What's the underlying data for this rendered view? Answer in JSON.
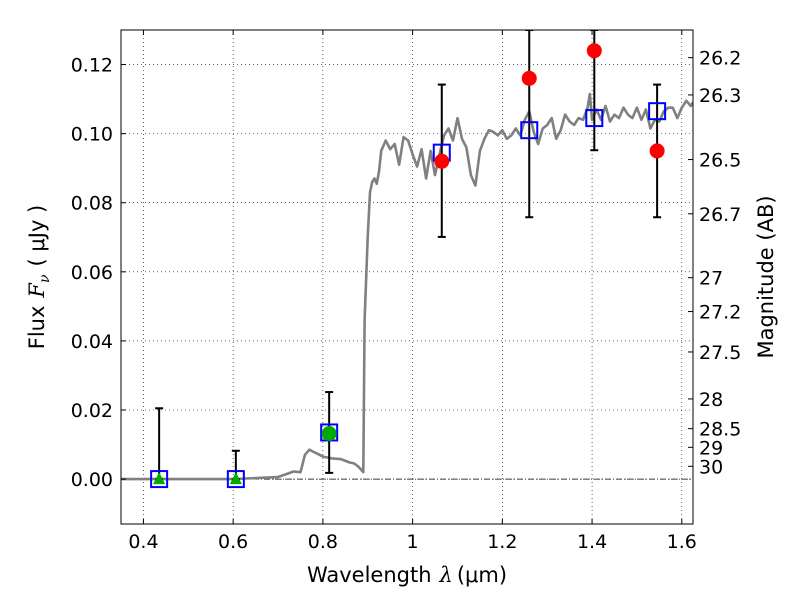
{
  "chart_data": {
    "type": "scatter",
    "xlabel": "Wavelength",
    "xlabel_symbol": "λ",
    "xlabel_unit": "(μm)",
    "ylabel": "Flux",
    "ylabel_symbol": "F",
    "ylabel_subscript": "ν",
    "ylabel_unit": "( μJy )",
    "y2label": "Magnitude (AB)",
    "xlim": [
      0.35,
      1.625
    ],
    "ylim": [
      -0.013,
      0.13
    ],
    "grid": true,
    "grid_style": "dotted",
    "x_ticks": [
      0.4,
      0.6,
      0.8,
      1.0,
      1.2,
      1.4,
      1.6
    ],
    "x_tick_labels": [
      "0.4",
      "0.6",
      "0.8",
      "1",
      "1.2",
      "1.4",
      "1.6"
    ],
    "y_ticks": [
      0.0,
      0.02,
      0.04,
      0.06,
      0.08,
      0.1,
      0.12
    ],
    "y_tick_labels": [
      "0.00",
      "0.02",
      "0.04",
      "0.06",
      "0.08",
      "0.10",
      "0.12"
    ],
    "magnitude_ticks": [
      {
        "label": "26.2",
        "flux": 0.122
      },
      {
        "label": "26.3",
        "flux": 0.1112
      },
      {
        "label": "26.5",
        "flux": 0.0925
      },
      {
        "label": "26.7",
        "flux": 0.0768
      },
      {
        "label": "27",
        "flux": 0.0583
      },
      {
        "label": "27.2",
        "flux": 0.0485
      },
      {
        "label": "27.5",
        "flux": 0.0368
      },
      {
        "label": "28",
        "flux": 0.0232
      },
      {
        "label": "28.5",
        "flux": 0.0146
      },
      {
        "label": "29",
        "flux": 0.0092
      },
      {
        "label": "30",
        "flux": 0.0037
      }
    ],
    "zero_line": {
      "y": 0.0,
      "style": "dash-dot"
    },
    "series": [
      {
        "marker": "line",
        "color": "#808080",
        "points": [
          [
            0.35,
            0.0
          ],
          [
            0.5,
            0.0
          ],
          [
            0.6,
            0.0
          ],
          [
            0.65,
            0.0003
          ],
          [
            0.7,
            0.0006
          ],
          [
            0.72,
            0.0015
          ],
          [
            0.735,
            0.0022
          ],
          [
            0.75,
            0.002
          ],
          [
            0.76,
            0.007
          ],
          [
            0.77,
            0.0085
          ],
          [
            0.78,
            0.0078
          ],
          [
            0.79,
            0.0072
          ],
          [
            0.8,
            0.0065
          ],
          [
            0.82,
            0.006
          ],
          [
            0.84,
            0.0058
          ],
          [
            0.86,
            0.0048
          ],
          [
            0.87,
            0.0045
          ],
          [
            0.88,
            0.0035
          ],
          [
            0.89,
            0.002
          ],
          [
            0.893,
            0.046
          ],
          [
            0.9,
            0.07
          ],
          [
            0.905,
            0.083
          ],
          [
            0.91,
            0.086
          ],
          [
            0.915,
            0.087
          ],
          [
            0.92,
            0.0855
          ],
          [
            0.925,
            0.089
          ],
          [
            0.93,
            0.095
          ],
          [
            0.94,
            0.098
          ],
          [
            0.95,
            0.0955
          ],
          [
            0.96,
            0.097
          ],
          [
            0.97,
            0.091
          ],
          [
            0.98,
            0.099
          ],
          [
            0.99,
            0.098
          ],
          [
            1.0,
            0.094
          ],
          [
            1.01,
            0.0905
          ],
          [
            1.02,
            0.0955
          ],
          [
            1.03,
            0.087
          ],
          [
            1.04,
            0.095
          ],
          [
            1.05,
            0.088
          ],
          [
            1.06,
            0.094
          ],
          [
            1.07,
            0.0995
          ],
          [
            1.08,
            0.1015
          ],
          [
            1.09,
            0.098
          ],
          [
            1.1,
            0.1045
          ],
          [
            1.11,
            0.0985
          ],
          [
            1.12,
            0.096
          ],
          [
            1.13,
            0.088
          ],
          [
            1.14,
            0.085
          ],
          [
            1.15,
            0.095
          ],
          [
            1.16,
            0.0985
          ],
          [
            1.17,
            0.101
          ],
          [
            1.18,
            0.1005
          ],
          [
            1.19,
            0.0995
          ],
          [
            1.2,
            0.101
          ],
          [
            1.21,
            0.0985
          ],
          [
            1.22,
            0.0995
          ],
          [
            1.23,
            0.1015
          ],
          [
            1.24,
            0.0995
          ],
          [
            1.25,
            0.104
          ],
          [
            1.26,
            0.1065
          ],
          [
            1.27,
            0.1005
          ],
          [
            1.28,
            0.097
          ],
          [
            1.29,
            0.1015
          ],
          [
            1.3,
            0.1025
          ],
          [
            1.31,
            0.1045
          ],
          [
            1.32,
            0.0985
          ],
          [
            1.33,
            0.101
          ],
          [
            1.34,
            0.1055
          ],
          [
            1.35,
            0.1035
          ],
          [
            1.36,
            0.1025
          ],
          [
            1.37,
            0.1045
          ],
          [
            1.38,
            0.104
          ],
          [
            1.39,
            0.1075
          ],
          [
            1.395,
            0.1115
          ],
          [
            1.4,
            0.104
          ],
          [
            1.41,
            0.107
          ],
          [
            1.42,
            0.104
          ],
          [
            1.43,
            0.108
          ],
          [
            1.44,
            0.1035
          ],
          [
            1.45,
            0.1055
          ],
          [
            1.46,
            0.1045
          ],
          [
            1.47,
            0.1075
          ],
          [
            1.48,
            0.1055
          ],
          [
            1.49,
            0.1045
          ],
          [
            1.5,
            0.1075
          ],
          [
            1.51,
            0.104
          ],
          [
            1.52,
            0.107
          ],
          [
            1.53,
            0.1015
          ],
          [
            1.54,
            0.104
          ],
          [
            1.55,
            0.1035
          ],
          [
            1.56,
            0.1065
          ],
          [
            1.57,
            0.1075
          ],
          [
            1.58,
            0.1075
          ],
          [
            1.59,
            0.1045
          ],
          [
            1.6,
            0.1075
          ],
          [
            1.61,
            0.1095
          ],
          [
            1.62,
            0.108
          ],
          [
            1.625,
            0.109
          ]
        ]
      },
      {
        "marker": "errorbar",
        "color": "#000000",
        "points": [
          {
            "x": 0.435,
            "low": 0.0,
            "high": 0.0205
          },
          {
            "x": 0.606,
            "low": 0.0,
            "high": 0.0082
          },
          {
            "x": 0.814,
            "low": 0.0018,
            "high": 0.0252
          },
          {
            "x": 1.065,
            "low": 0.0701,
            "high": 0.1142
          },
          {
            "x": 1.26,
            "low": 0.0758,
            "high": 0.13
          },
          {
            "x": 1.405,
            "low": 0.0952,
            "high": 0.13
          },
          {
            "x": 1.545,
            "low": 0.0758,
            "high": 0.1142
          }
        ]
      },
      {
        "marker": "square",
        "color": "#0000ff",
        "points": [
          {
            "x": 0.435,
            "y": 0.0
          },
          {
            "x": 0.606,
            "y": 0.0
          },
          {
            "x": 0.814,
            "y": 0.0135
          },
          {
            "x": 1.065,
            "y": 0.0945
          },
          {
            "x": 1.26,
            "y": 0.101
          },
          {
            "x": 1.405,
            "y": 0.1045
          },
          {
            "x": 1.545,
            "y": 0.1065
          }
        ]
      },
      {
        "marker": "triangle",
        "color": "#00aa00",
        "points": [
          {
            "x": 0.435,
            "y": 0.0
          },
          {
            "x": 0.606,
            "y": 0.0
          }
        ]
      },
      {
        "marker": "circle",
        "color": "#00aa00",
        "points": [
          {
            "x": 0.814,
            "y": 0.0132
          }
        ]
      },
      {
        "marker": "circle",
        "color": "#ff0000",
        "points": [
          {
            "x": 1.065,
            "y": 0.092
          },
          {
            "x": 1.26,
            "y": 0.116
          },
          {
            "x": 1.405,
            "y": 0.124
          },
          {
            "x": 1.545,
            "y": 0.095
          }
        ]
      }
    ]
  }
}
